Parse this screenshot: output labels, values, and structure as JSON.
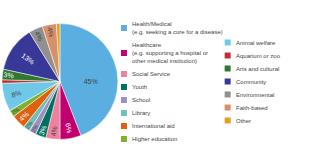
{
  "chart_data": {
    "type": "pie",
    "categories": [
      "Health/Medical\n(e.g. seeking a cure for a disease)",
      "Healthcare\n(e.g. supporting a hospital or\nother medical institution)",
      "Social Service",
      "Youth",
      "School",
      "Library",
      "International aid",
      "Higher education",
      "Animal welfare",
      "Aquarium or zoo",
      "Arts and cultural",
      "Community",
      "Environmental",
      "Faith-based",
      "Other"
    ],
    "values": [
      45,
      6,
      4,
      3,
      2,
      2,
      4,
      2,
      8,
      1,
      3,
      13,
      4,
      4,
      1
    ],
    "value_labels": [
      "45%",
      "6%",
      "4%",
      "3%",
      "2%",
      "2%",
      "4%",
      "2%",
      "8%",
      null,
      "3%",
      "13%",
      "4%",
      "4%",
      null
    ],
    "colors": [
      "#5aafe0",
      "#c0006e",
      "#f080a0",
      "#007060",
      "#9e8fbf",
      "#70bfb8",
      "#e06010",
      "#80b030",
      "#70c8e8",
      "#c03030",
      "#307830",
      "#383898",
      "#909090",
      "#d8906a",
      "#e0a020"
    ],
    "data_labels": true,
    "legend": "right"
  }
}
